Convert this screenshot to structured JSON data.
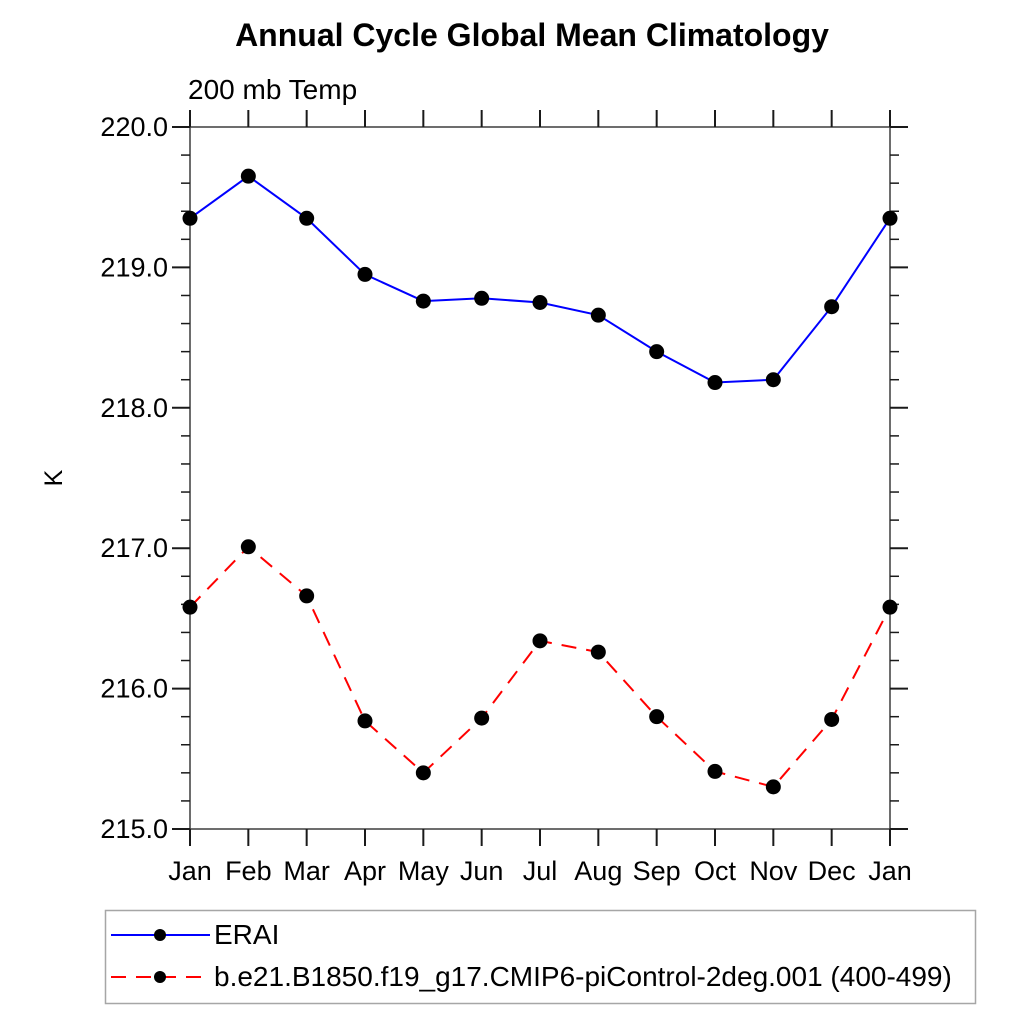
{
  "chart_data": {
    "type": "line",
    "title": "Annual Cycle Global Mean Climatology",
    "subtitle": "200 mb Temp",
    "ylabel": "K",
    "xlabel": "",
    "x_categories": [
      "Jan",
      "Feb",
      "Mar",
      "Apr",
      "May",
      "Jun",
      "Jul",
      "Aug",
      "Sep",
      "Oct",
      "Nov",
      "Dec",
      "Jan"
    ],
    "y_ticks": [
      "220.0",
      "219.0",
      "218.0",
      "217.0",
      "216.0",
      "215.0"
    ],
    "ylim": [
      215.0,
      220.0
    ],
    "y_minor_step": 0.2,
    "grid": false,
    "legend_position": "bottom-left-box",
    "marker": "filled-circle",
    "marker_color": "#000000",
    "series": [
      {
        "name": "ERAI",
        "color": "#0000ff",
        "style": "solid",
        "values": [
          219.35,
          219.65,
          219.35,
          218.95,
          218.76,
          218.78,
          218.75,
          218.66,
          218.4,
          218.18,
          218.2,
          218.72,
          219.35
        ]
      },
      {
        "name": "b.e21.B1850.f19_g17.CMIP6-piControl-2deg.001 (400-499)",
        "color": "#ff0000",
        "style": "dashed",
        "values": [
          216.58,
          217.01,
          216.66,
          215.77,
          215.4,
          215.79,
          216.34,
          216.26,
          215.8,
          215.41,
          215.3,
          215.78,
          216.58
        ]
      }
    ]
  }
}
